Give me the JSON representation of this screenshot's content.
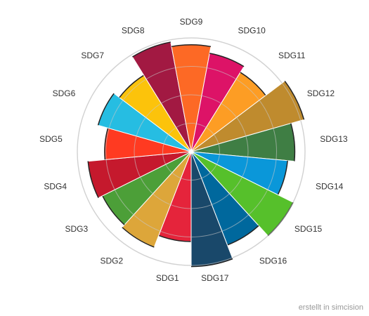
{
  "chart_data": {
    "type": "polar-area",
    "categories": [
      "SDG1",
      "SDG2",
      "SDG3",
      "SDG4",
      "SDG5",
      "SDG6",
      "SDG7",
      "SDG8",
      "SDG9",
      "SDG10",
      "SDG11",
      "SDG12",
      "SDG13",
      "SDG14",
      "SDG15",
      "SDG16",
      "SDG17"
    ],
    "values": [
      79,
      90,
      87,
      91,
      76,
      85,
      79,
      98,
      94,
      88,
      82,
      103,
      91,
      85,
      100,
      88,
      101
    ],
    "colors": [
      "#e5243b",
      "#dda63a",
      "#4c9f38",
      "#c5192d",
      "#ff3a21",
      "#26bde2",
      "#fcc30b",
      "#a21942",
      "#fd6925",
      "#dd1367",
      "#fd9d24",
      "#bf8b2e",
      "#3f7e44",
      "#0a97d9",
      "#56c02b",
      "#00689d",
      "#19486a"
    ],
    "rlim": [
      0,
      100
    ],
    "rticks": [
      25,
      50,
      75,
      100
    ],
    "grid": true,
    "credit": "erstellt in simcision"
  }
}
